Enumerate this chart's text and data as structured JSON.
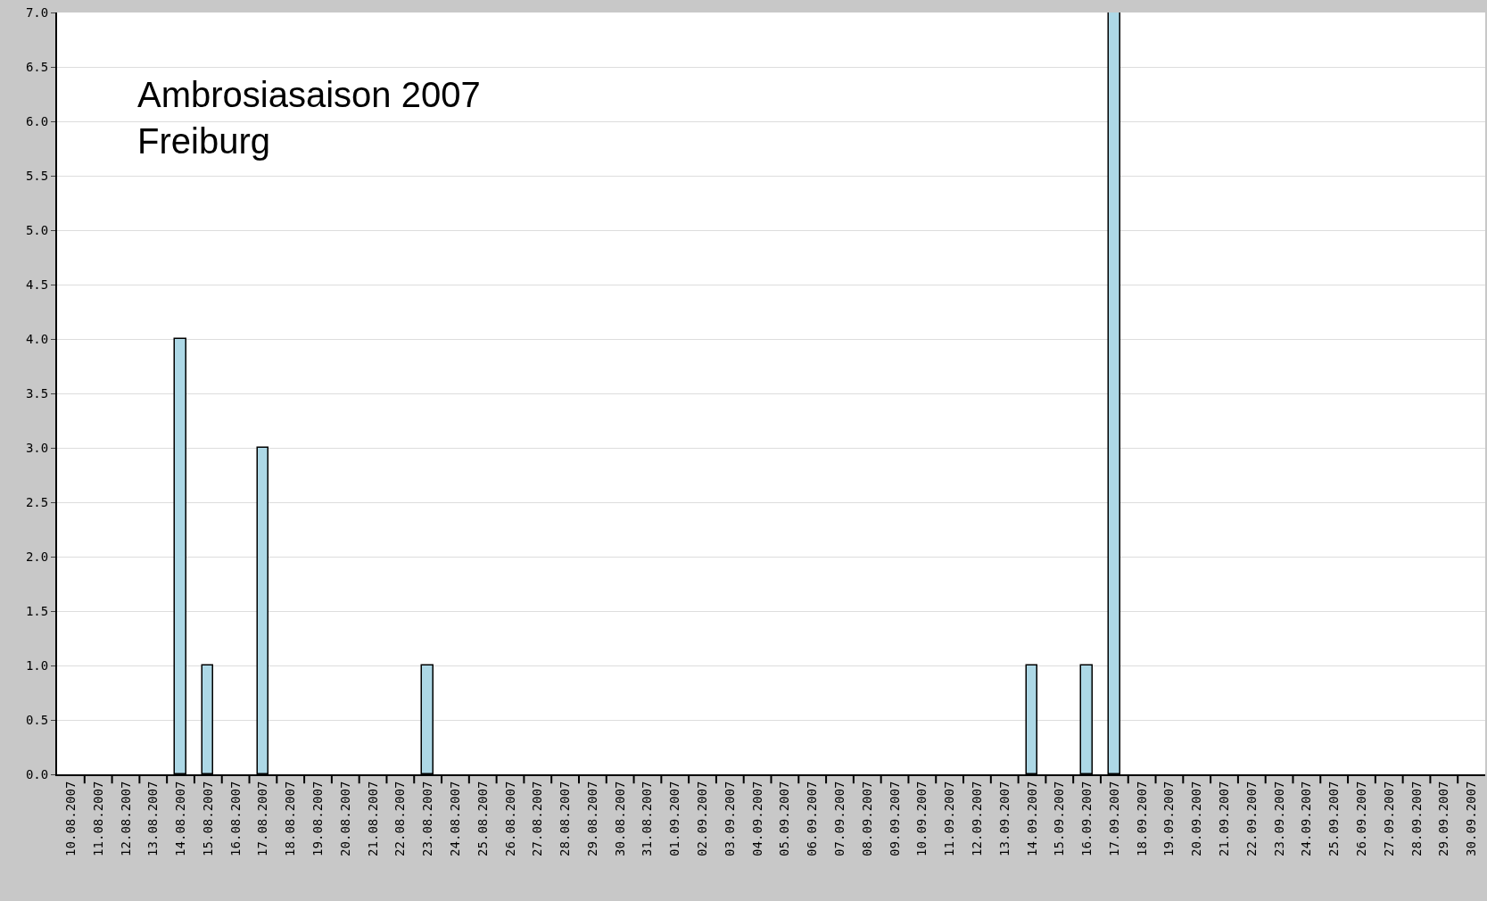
{
  "chart_data": {
    "type": "bar",
    "categories": [
      "10.08.2007",
      "11.08.2007",
      "12.08.2007",
      "13.08.2007",
      "14.08.2007",
      "15.08.2007",
      "16.08.2007",
      "17.08.2007",
      "18.08.2007",
      "19.08.2007",
      "20.08.2007",
      "21.08.2007",
      "22.08.2007",
      "23.08.2007",
      "24.08.2007",
      "25.08.2007",
      "26.08.2007",
      "27.08.2007",
      "28.08.2007",
      "29.08.2007",
      "30.08.2007",
      "31.08.2007",
      "01.09.2007",
      "02.09.2007",
      "03.09.2007",
      "04.09.2007",
      "05.09.2007",
      "06.09.2007",
      "07.09.2007",
      "08.09.2007",
      "09.09.2007",
      "10.09.2007",
      "11.09.2007",
      "12.09.2007",
      "13.09.2007",
      "14.09.2007",
      "15.09.2007",
      "16.09.2007",
      "17.09.2007",
      "18.09.2007",
      "19.09.2007",
      "20.09.2007",
      "21.09.2007",
      "22.09.2007",
      "23.09.2007",
      "24.09.2007",
      "25.09.2007",
      "26.09.2007",
      "27.09.2007",
      "28.09.2007",
      "29.09.2007",
      "30.09.2007"
    ],
    "values": [
      0,
      0,
      0,
      0,
      4,
      1,
      0,
      3,
      0,
      0,
      0,
      0,
      0,
      1,
      0,
      0,
      0,
      0,
      0,
      0,
      0,
      0,
      0,
      0,
      0,
      0,
      0,
      0,
      0,
      0,
      0,
      0,
      0,
      0,
      0,
      1,
      0,
      1,
      7,
      0,
      0,
      0,
      0,
      0,
      0,
      0,
      0,
      0,
      0,
      0,
      0,
      0
    ],
    "color": "#add8e6",
    "ylim": [
      0,
      7
    ],
    "yticks": [
      {
        "value": 0,
        "label": "0.0"
      },
      {
        "value": 0.5,
        "label": "0.5"
      },
      {
        "value": 1,
        "label": "1.0"
      },
      {
        "value": 1.5,
        "label": "1.5"
      },
      {
        "value": 2,
        "label": "2.0"
      },
      {
        "value": 2.5,
        "label": "2.5"
      },
      {
        "value": 3,
        "label": "3.0"
      },
      {
        "value": 3.5,
        "label": "3.5"
      },
      {
        "value": 4,
        "label": "4.0"
      },
      {
        "value": 4.5,
        "label": "4.5"
      },
      {
        "value": 5,
        "label": "5.0"
      },
      {
        "value": 5.5,
        "label": "5.5"
      },
      {
        "value": 6,
        "label": "6.0"
      },
      {
        "value": 6.5,
        "label": "6.5"
      },
      {
        "value": 7,
        "label": "7.0"
      }
    ],
    "grid": "y",
    "annotations": [
      "Ambrosiasaison 2007\nFreiburg"
    ]
  }
}
